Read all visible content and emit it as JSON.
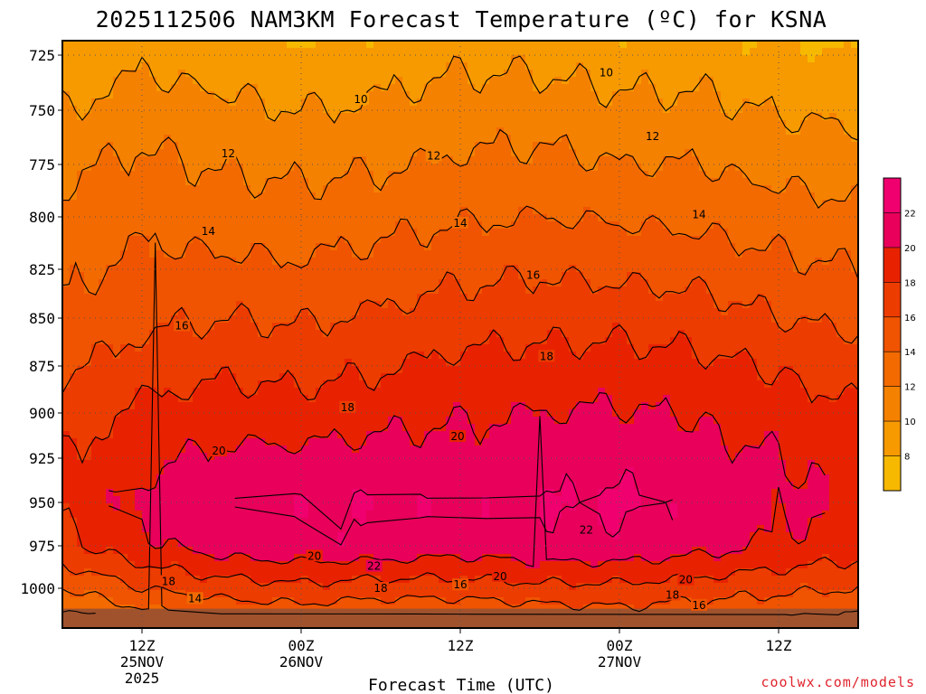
{
  "chart_data": {
    "type": "heatmap",
    "title": "2025112506 NAM3KM Forecast Temperature (ºC) for KSNA",
    "xlabel": "Forecast Time (UTC)",
    "ylabel": "",
    "credit": "coolwx.com/models",
    "y_unit": "hPa",
    "ylim": [
      1018,
      715
    ],
    "y_ticks": [
      {
        "value": 725,
        "label": "725"
      },
      {
        "value": 750,
        "label": "750"
      },
      {
        "value": 775,
        "label": "775"
      },
      {
        "value": 800,
        "label": "800"
      },
      {
        "value": 825,
        "label": "825"
      },
      {
        "value": 850,
        "label": "850"
      },
      {
        "value": 875,
        "label": "875"
      },
      {
        "value": 900,
        "label": "900"
      },
      {
        "value": 925,
        "label": "925"
      },
      {
        "value": 950,
        "label": "950"
      },
      {
        "value": 975,
        "label": "975"
      },
      {
        "value": 1000,
        "label": "1000"
      }
    ],
    "x_unit": "hours since 2025-11-25 06Z",
    "xlim": [
      0,
      60
    ],
    "x_ticks": [
      {
        "hour": 6,
        "label": "12Z",
        "sub": "25NOV",
        "sub2": "2025"
      },
      {
        "hour": 18,
        "label": "00Z",
        "sub": "26NOV",
        "sub2": ""
      },
      {
        "hour": 30,
        "label": "12Z",
        "sub": "",
        "sub2": ""
      },
      {
        "hour": 42,
        "label": "00Z",
        "sub": "27NOV",
        "sub2": ""
      },
      {
        "hour": 54,
        "label": "12Z",
        "sub": "",
        "sub2": ""
      }
    ],
    "colorbar": {
      "levels": [
        6,
        8,
        10,
        12,
        14,
        16,
        18,
        20,
        22,
        24
      ],
      "labels": [
        "8",
        "10",
        "12",
        "14",
        "16",
        "18",
        "20",
        "22"
      ],
      "colors": [
        "#f7b800",
        "#f79a00",
        "#f58100",
        "#f26a00",
        "#f05400",
        "#ec3c00",
        "#e82200",
        "#e8005a",
        "#f0006e"
      ]
    },
    "contour_levels": [
      10,
      12,
      14,
      16,
      18,
      20,
      22
    ],
    "profile_levels_hpa": [
      715,
      725,
      750,
      775,
      800,
      825,
      850,
      875,
      900,
      925,
      950,
      975,
      1000,
      1018
    ],
    "profiles": [
      {
        "hour": 0,
        "temps": [
          7.5,
          8.5,
          10.0,
          11.5,
          12.5,
          13.5,
          14.5,
          15.5,
          17.0,
          18.0,
          18.5,
          17.5,
          14.0,
          11.0
        ]
      },
      {
        "hour": 6,
        "temps": [
          8.5,
          9.5,
          11.0,
          12.5,
          13.5,
          14.5,
          15.5,
          17.0,
          18.5,
          19.5,
          20.5,
          19.5,
          16.0,
          13.0
        ]
      },
      {
        "hour": 12,
        "temps": [
          8.0,
          9.0,
          10.5,
          11.8,
          13.0,
          14.5,
          16.0,
          17.5,
          19.0,
          20.5,
          21.5,
          21.0,
          17.0,
          14.0
        ]
      },
      {
        "hour": 18,
        "temps": [
          7.5,
          8.5,
          10.0,
          11.5,
          12.8,
          14.3,
          15.8,
          17.3,
          18.8,
          20.5,
          21.8,
          21.5,
          17.5,
          14.5
        ]
      },
      {
        "hour": 24,
        "temps": [
          8.0,
          9.0,
          10.3,
          11.8,
          13.3,
          14.8,
          16.3,
          17.8,
          19.3,
          20.8,
          22.0,
          21.5,
          17.0,
          14.0
        ]
      },
      {
        "hour": 30,
        "temps": [
          8.5,
          9.5,
          11.0,
          12.3,
          13.8,
          15.5,
          17.0,
          18.5,
          19.8,
          20.8,
          21.5,
          21.0,
          17.0,
          14.0
        ]
      },
      {
        "hour": 36,
        "temps": [
          8.5,
          9.5,
          11.0,
          12.5,
          14.0,
          15.8,
          17.2,
          18.7,
          20.0,
          21.0,
          22.0,
          21.5,
          17.5,
          14.5
        ]
      },
      {
        "hour": 42,
        "temps": [
          8.0,
          9.0,
          10.5,
          12.0,
          13.8,
          15.5,
          17.3,
          18.8,
          20.2,
          21.3,
          22.3,
          21.5,
          17.5,
          15.0
        ]
      },
      {
        "hour": 48,
        "temps": [
          8.0,
          9.0,
          10.5,
          12.0,
          13.5,
          15.3,
          17.0,
          18.5,
          19.8,
          20.8,
          21.5,
          20.8,
          17.0,
          14.5
        ]
      },
      {
        "hour": 54,
        "temps": [
          7.5,
          8.5,
          9.8,
          11.3,
          13.0,
          14.5,
          16.0,
          17.8,
          19.0,
          20.0,
          20.5,
          19.8,
          16.5,
          14.0
        ]
      },
      {
        "hour": 60,
        "temps": [
          7.0,
          8.0,
          9.5,
          11.0,
          12.5,
          14.0,
          15.5,
          17.0,
          18.3,
          19.3,
          19.8,
          19.0,
          16.0,
          13.5
        ]
      }
    ],
    "contour_labels": [
      {
        "value": 10,
        "hour": 22.5,
        "hpa": 745
      },
      {
        "value": 10,
        "hour": 41.0,
        "hpa": 733
      },
      {
        "value": 12,
        "hour": 12.5,
        "hpa": 770
      },
      {
        "value": 12,
        "hour": 28.0,
        "hpa": 771
      },
      {
        "value": 12,
        "hour": 44.5,
        "hpa": 762
      },
      {
        "value": 14,
        "hour": 11.0,
        "hpa": 807
      },
      {
        "value": 14,
        "hour": 30.0,
        "hpa": 803
      },
      {
        "value": 14,
        "hour": 48.0,
        "hpa": 799
      },
      {
        "value": 16,
        "hour": 9.0,
        "hpa": 854
      },
      {
        "value": 16,
        "hour": 35.5,
        "hpa": 828
      },
      {
        "value": 18,
        "hour": 21.5,
        "hpa": 897
      },
      {
        "value": 18,
        "hour": 36.5,
        "hpa": 870
      },
      {
        "value": 20,
        "hour": 11.8,
        "hpa": 921
      },
      {
        "value": 20,
        "hour": 29.8,
        "hpa": 913
      },
      {
        "value": 20,
        "hour": 19.0,
        "hpa": 981
      },
      {
        "value": 20,
        "hour": 33.0,
        "hpa": 993
      },
      {
        "value": 20,
        "hour": 47.0,
        "hpa": 995
      },
      {
        "value": 22,
        "hour": 23.5,
        "hpa": 987
      },
      {
        "value": 22,
        "hour": 39.5,
        "hpa": 966
      },
      {
        "value": 18,
        "hour": 8.0,
        "hpa": 996
      },
      {
        "value": 18,
        "hour": 24.0,
        "hpa": 1000
      },
      {
        "value": 18,
        "hour": 46.0,
        "hpa": 1004
      },
      {
        "value": 16,
        "hour": 30.0,
        "hpa": 998
      },
      {
        "value": 16,
        "hour": 48.0,
        "hpa": 1010
      },
      {
        "value": 14,
        "hour": 10.0,
        "hpa": 1006
      }
    ],
    "ground": {
      "color": "#a0522d",
      "hpa": 1012
    }
  }
}
